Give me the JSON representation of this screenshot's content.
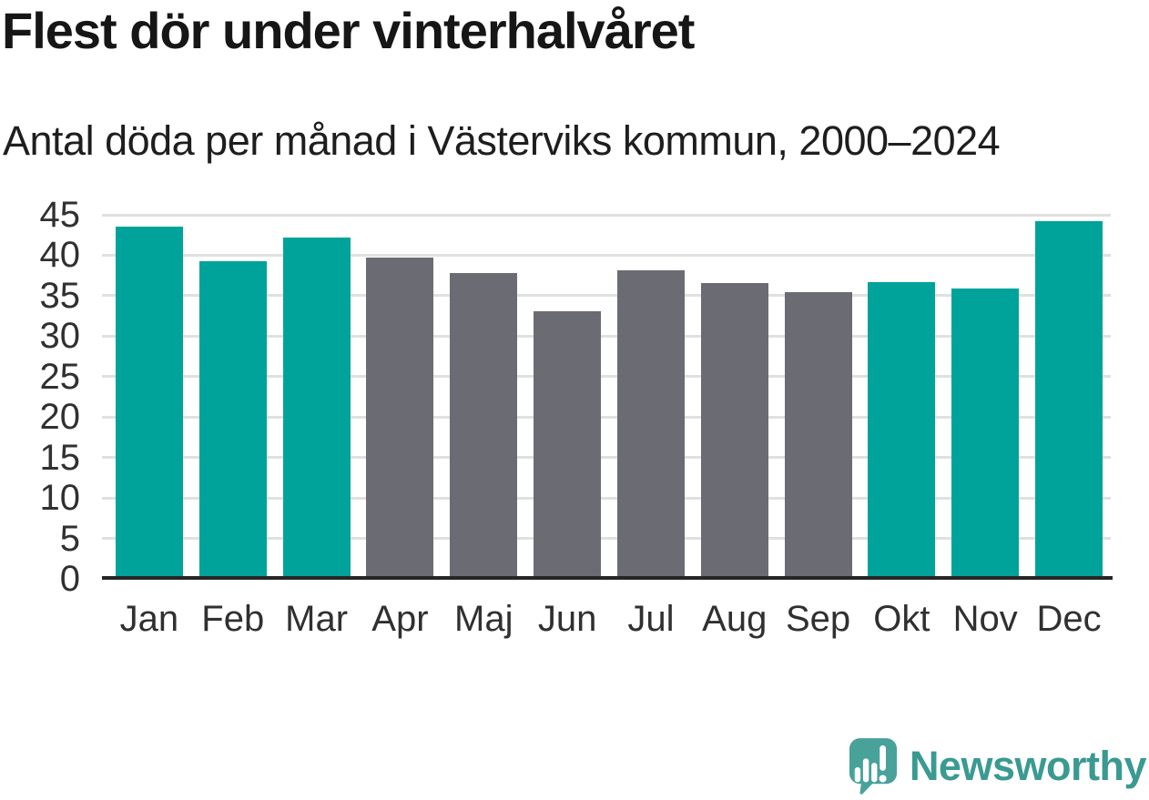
{
  "header": {
    "title": "Flest dör under vinterhalvåret",
    "subtitle": "Antal döda per månad i Västerviks kommun, 2000–2024"
  },
  "chart_data": {
    "type": "bar",
    "categories": [
      "Jan",
      "Feb",
      "Mar",
      "Apr",
      "Maj",
      "Jun",
      "Jul",
      "Aug",
      "Sep",
      "Okt",
      "Nov",
      "Dec"
    ],
    "values": [
      43.5,
      39.3,
      42.2,
      39.7,
      37.8,
      33.1,
      38.1,
      36.6,
      35.4,
      36.7,
      35.9,
      44.2
    ],
    "highlight": [
      true,
      true,
      true,
      false,
      false,
      false,
      false,
      false,
      false,
      true,
      true,
      true
    ],
    "title": "Flest dör under vinterhalvåret",
    "subtitle": "Antal döda per månad i Västerviks kommun, 2000–2024",
    "xlabel": "",
    "ylabel": "",
    "ylim": [
      0,
      45
    ],
    "yticks": [
      0,
      5,
      10,
      15,
      20,
      25,
      30,
      35,
      40,
      45
    ],
    "grid": true,
    "legend": "none",
    "colors": {
      "bar_highlight": "#00a39a",
      "bar_default": "#6b6b73",
      "gridline": "#e0e0e0",
      "axis_line": "#262626",
      "tick_label": "#303030"
    }
  },
  "footer": {
    "brand": "Newsworthy",
    "brand_text_color": "#3a9a91",
    "logo_mark_color": "#48a29a"
  }
}
